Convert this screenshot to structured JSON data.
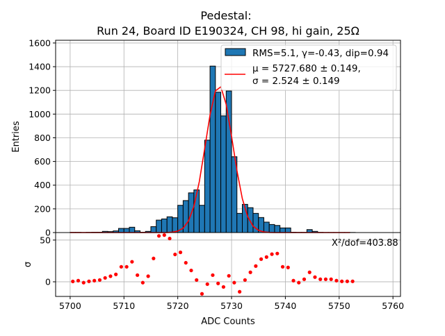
{
  "chart_data": [
    {
      "type": "bar",
      "title": "Pedestal:",
      "subtitle": "Run 24, Board ID E190324, CH 98, hi gain, 25Ω",
      "xlabel": "ADC Counts",
      "ylabel": "Entries",
      "xlim": [
        5697.3,
        5761.4
      ],
      "ylim": [
        0,
        1623
      ],
      "grid": true,
      "legend_placement": "top-right",
      "x_ticks": [
        "5700",
        "5710",
        "5720",
        "5730",
        "5740",
        "5750",
        "5760"
      ],
      "x_tick_values": [
        5700,
        5710,
        5720,
        5730,
        5740,
        5750,
        5760
      ],
      "y_ticks": [
        "0",
        "200",
        "400",
        "600",
        "800",
        "1000",
        "1200",
        "1400",
        "1600"
      ],
      "y_tick_values": [
        0,
        200,
        400,
        600,
        800,
        1000,
        1200,
        1400,
        1600
      ],
      "bin_start": 5700,
      "bin_width": 1,
      "counts": [
        2,
        2,
        1,
        2,
        3,
        3,
        10,
        8,
        14,
        35,
        35,
        45,
        15,
        3,
        10,
        50,
        105,
        115,
        133,
        125,
        230,
        270,
        335,
        360,
        230,
        780,
        1405,
        1185,
        985,
        1195,
        640,
        162,
        238,
        210,
        162,
        127,
        88,
        68,
        60,
        39,
        39,
        3,
        2,
        2,
        25,
        10,
        2,
        1,
        1,
        1,
        1,
        1,
        1
      ],
      "hist_color": "#1f77b4",
      "legend": {
        "hist_label": "RMS=5.1, γ=-0.43, dip=0.94",
        "fit_label_line1": "μ = 5727.680 ± 0.149,",
        "fit_label_line2": "σ = 2.524 ± 0.149"
      },
      "fit": {
        "type": "line",
        "mu": 5727.68,
        "sigma": 2.524,
        "amplitude": 1240,
        "x_range": [
          5700.5,
          5752.5
        ],
        "color": "#ff0000"
      }
    },
    {
      "type": "scatter",
      "ylabel": "σ",
      "xlim": [
        5697.3,
        5761.4
      ],
      "ylim": [
        -17.5,
        59
      ],
      "grid": true,
      "y_ticks": [
        "0",
        "50"
      ],
      "y_tick_values": [
        0,
        50
      ],
      "annotation": "X²/dof=403.88",
      "x_start": 5700.5,
      "x_step": 1,
      "values": [
        0.5,
        1.4,
        -1,
        0.6,
        1.4,
        2.2,
        4.7,
        6.7,
        8.9,
        18,
        18,
        24,
        8,
        -1,
        6.7,
        28,
        55,
        56,
        51.9,
        32.8,
        35.3,
        22.8,
        13.6,
        2.2,
        -14.4,
        -2.8,
        8,
        -1.9,
        -6.1,
        7.2,
        -1,
        -11.9,
        2.2,
        11.4,
        18.9,
        27.2,
        29.7,
        33.1,
        33.9,
        18,
        17.2,
        1.4,
        -1,
        3.1,
        11.4,
        5.6,
        3.1,
        3.1,
        3.1,
        1.4,
        0.6,
        0.6,
        0.6
      ],
      "color": "#ff0000"
    }
  ]
}
